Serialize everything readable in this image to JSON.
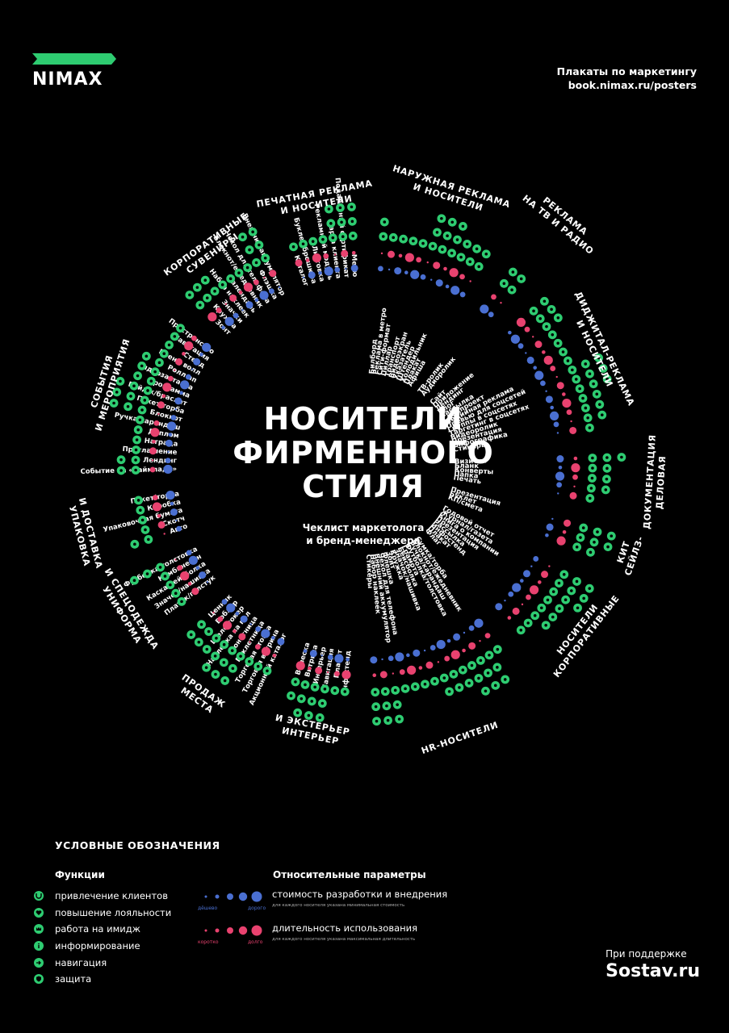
{
  "logo": {
    "name": "NIMAX",
    "flag_color": "#2ecc71"
  },
  "header": {
    "line1": "Плакаты по маркетингу",
    "line2": "book.nimax.ru/posters"
  },
  "title": [
    "НОСИТЕЛИ",
    "ФИРМЕННОГО",
    "СТИЛЯ"
  ],
  "subtitle": [
    "Чеклист маркетолога",
    "и бренд-менеджера"
  ],
  "colors": {
    "green": "#2ecc71",
    "blue": "#4a6fd1",
    "pink": "#e8426f"
  },
  "sections": [
    {
      "label": [
        "ПЕЧАТНАЯ РЕКЛАМА",
        "И НОСИТЕЛИ"
      ],
      "items": [
        "Каталог",
        "Буклет/брошюра",
        "Листовка",
        "Рекламный модуль",
        "Карта клиента",
        "Подарочный сертификат",
        "Меню"
      ]
    },
    {
      "label": [
        "НАРУЖНАЯ РЕКЛАМА",
        "И НОСИТЕЛИ"
      ],
      "items": [
        "Билборд",
        "Реклама в метро",
        "Сити-формат",
        "Пиллар",
        "Транспорт",
        "Видеоэкран",
        "Указатель",
        "Штендер",
        "Холодильник",
        "Плакат",
        "Афиша"
      ]
    },
    {
      "label": [
        "РЕКЛАМА",
        "НА ТВ И РАДИО"
      ],
      "items": [
        "ТВ-ролик",
        "Аудиоролик"
      ]
    },
    {
      "label": [
        "ДИДЖИТАЛ-РЕКЛАМА",
        "И НОСИТЕЛИ"
      ],
      "items": [
        "Сайт",
        "Приложение",
        "Лендинг",
        "Блог",
        "Рассылка",
        "Спецпроект",
        "Медийная реклама",
        "Превью для соцсетей",
        "Группы в соцсетях",
        "Таргетинг в соцсетях",
        "Видеоролик",
        "Презентация",
        "Инфографика",
        "Стикеры"
      ]
    },
    {
      "label": [
        "ДЕЛОВАЯ",
        "ДОКУМЕНТАЦИЯ"
      ],
      "items": [
        "Визитка",
        "Бланк",
        "Конверты",
        "Папка",
        "Печать"
      ]
    },
    {
      "label": [
        "СЕЙЛЗ-",
        "КИТ"
      ],
      "items": [
        "Презентация",
        "Буклет",
        "КП/смета"
      ]
    },
    {
      "label": [
        "КОРПОРАТИВНЫЕ",
        "НОСИТЕЛИ"
      ],
      "items": [
        "Годовой отчет",
        "Журнал/газета",
        "Книга о компании",
        "Презентация",
        "Рассылка",
        "Инфостенд",
        "Плакат",
        "Флаг"
      ]
    },
    {
      "label": [
        "HR-НОСИТЕЛИ"
      ],
      "items": [
        "Сумка/торба",
        "Блокнот/ежедневник",
        "Ручка/карандаш",
        "Футболка/толстовка",
        "Грамота",
        "Бейсболка",
        "Значок/нашивка",
        "Кружка",
        "Зонт",
        "Флешка",
        "Чехол для телефона",
        "Внешний аккумулятор",
        "Набор наклеек",
        "Стикеры"
      ]
    },
    {
      "label": [
        "ИНТЕРЬЕР",
        "И ЭКСТЕРЬЕР"
      ],
      "items": [
        "Инфостенд",
        "Плакат",
        "Навигация",
        "Интерьер",
        "Витрина",
        "Вывеска"
      ]
    },
    {
      "label": [
        "МЕСТА",
        "ПРОДАЖ"
      ],
      "items": [
        "Акционный каталог",
        "Торговая витрина",
        "Торговая стойка",
        "Буклетница",
        "Монетница",
        "Наклейка на пол",
        "Шелфтокер",
        "Воблер",
        "Ценник"
      ]
    },
    {
      "label": [
        "УНИФОРМА",
        "И СПЕЦОДЕЖДА"
      ],
      "items": [
        "Платок/галстук",
        "Значок/нашивка",
        "Каска/бейсболка",
        "Комбинезон",
        "Футболка/толстовка"
      ]
    },
    {
      "label": [
        "УПАКОВКА",
        "И ДОСТАВКА"
      ],
      "items": [
        "Авто",
        "Скотч",
        "Упаковочная бумага",
        "Коробка",
        "Пакет/торба"
      ]
    },
    {
      "label": [
        "СОБЫТИЯ",
        "И МЕРОПРИЯТИЯ"
      ],
      "items": [
        "Событие на «Таймпаде»",
        "Лендинг",
        "Приглашение",
        "Награда",
        "Диплом",
        "Ручка/карандаш",
        "Блокнот",
        "Пакет/торба",
        "Бейдж/браслет",
        "Программа",
        "Видеозаставка",
        "Ролл ап",
        "Бренд волл",
        "Стенд",
        "Навигация",
        "Пространство"
      ]
    },
    {
      "label": [
        "КОРПОРАТИВНЫЕ",
        "СУВЕНИРЫ"
      ],
      "items": [
        "Зонт",
        "Кружка",
        "Значки",
        "Набор наклеек",
        "Календарь",
        "Блокнот/ежедневник",
        "Чехол для телефона",
        "Флэшка",
        "Внешний аккумулятор"
      ]
    }
  ],
  "legend": {
    "title": "УСЛОВНЫЕ ОБОЗНАЧЕНИЯ",
    "functions_title": "Функции",
    "functions": [
      {
        "label": "привлечение клиентов",
        "icon": "magnet-icon"
      },
      {
        "label": "повышение лояльности",
        "icon": "heart-icon"
      },
      {
        "label": "работа на имидж",
        "icon": "crown-icon"
      },
      {
        "label": "информирование",
        "icon": "info-icon"
      },
      {
        "label": "навигация",
        "icon": "arrow-icon"
      },
      {
        "label": "защита",
        "icon": "shield-icon"
      }
    ],
    "params_title": "Относительные параметры",
    "cost": {
      "label": "стоимость разработки и внедрения",
      "note": "для каждого носителя указана минимальная стоимость",
      "low": "дёшево",
      "high": "дорого"
    },
    "duration": {
      "label": "длительность использования",
      "note": "для каждого носителя указана максимальная длительность",
      "low": "коротко",
      "high": "долго"
    }
  },
  "sponsor": {
    "line1": "При поддержке",
    "line2": "Sostav.ru"
  }
}
